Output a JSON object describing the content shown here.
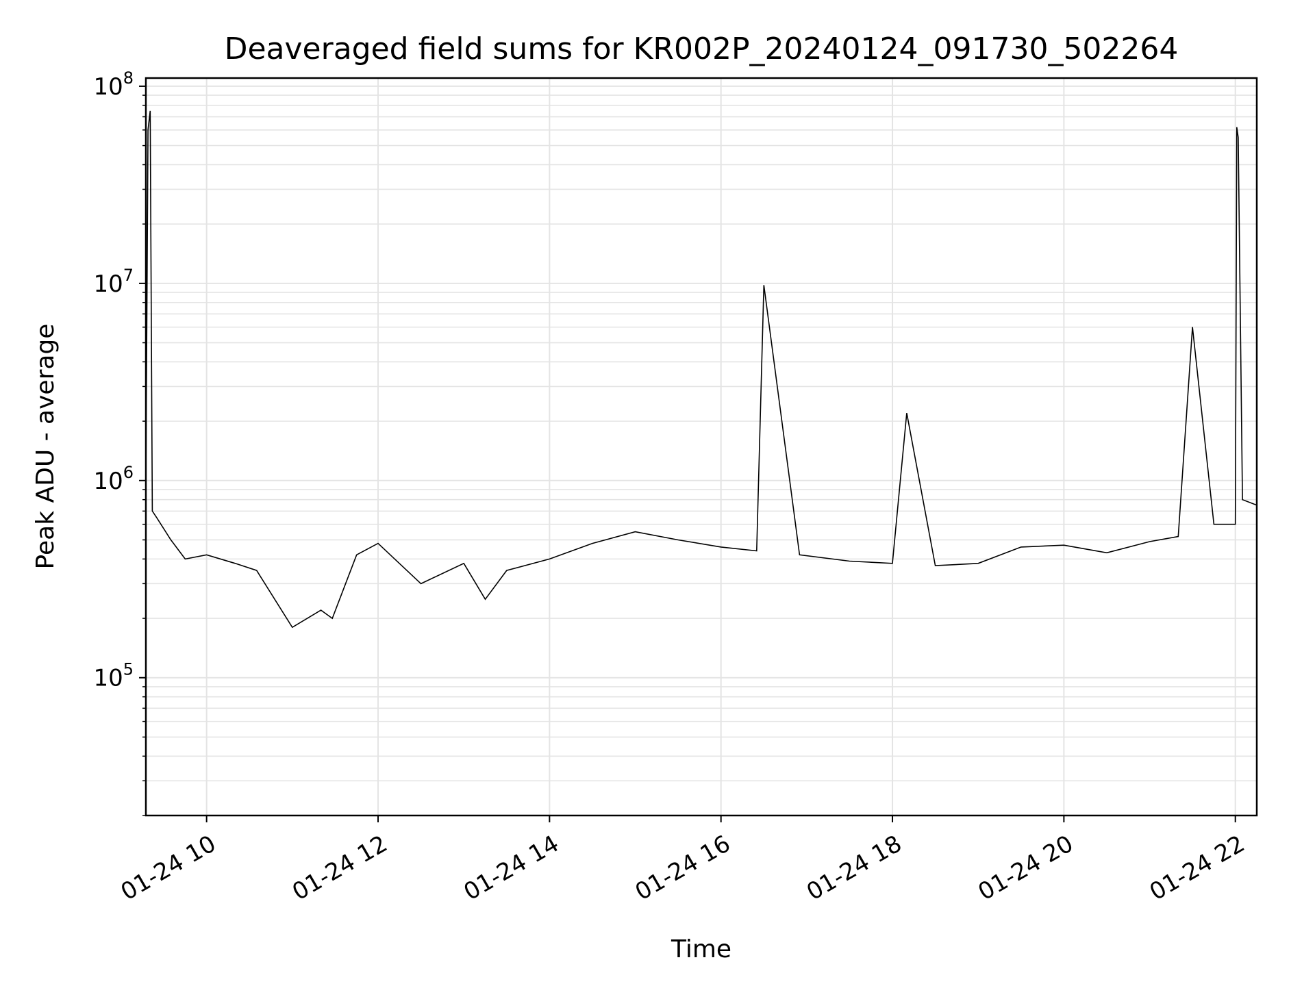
{
  "chart_data": {
    "type": "line",
    "title": "Deaveraged field sums for KR002P_20240124_091730_502264",
    "xlabel": "Time",
    "ylabel": "Peak ADU - average",
    "yscale": "log",
    "ylim": [
      20000,
      110000000
    ],
    "xlim": [
      "2024-01-24 09:17:30",
      "2024-01-24 22:15:00"
    ],
    "grid": true,
    "line_color": "#000000",
    "grid_color": "#e4e4e4",
    "x_ticks": [
      {
        "value": "2024-01-24 10:00",
        "label": "01-24 10"
      },
      {
        "value": "2024-01-24 12:00",
        "label": "01-24 12"
      },
      {
        "value": "2024-01-24 14:00",
        "label": "01-24 14"
      },
      {
        "value": "2024-01-24 16:00",
        "label": "01-24 16"
      },
      {
        "value": "2024-01-24 18:00",
        "label": "01-24 18"
      },
      {
        "value": "2024-01-24 20:00",
        "label": "01-24 20"
      },
      {
        "value": "2024-01-24 22:00",
        "label": "01-24 22"
      }
    ],
    "y_ticks": [
      {
        "value": 100000,
        "base": "10",
        "exp": "5"
      },
      {
        "value": 1000000,
        "base": "10",
        "exp": "6"
      },
      {
        "value": 10000000,
        "base": "10",
        "exp": "7"
      },
      {
        "value": 100000000,
        "base": "10",
        "exp": "8"
      }
    ],
    "series": [
      {
        "values_note": "dense noisy trace; representative samples",
        "x": [
          "2024-01-24 09:17:30",
          "2024-01-24 09:19:00",
          "2024-01-24 09:20:30",
          "2024-01-24 09:22:00",
          "2024-01-24 09:25:00",
          "2024-01-24 09:35:00",
          "2024-01-24 09:45:00",
          "2024-01-24 10:00:00",
          "2024-01-24 10:20:00",
          "2024-01-24 10:35:00",
          "2024-01-24 11:00:00",
          "2024-01-24 11:20:00",
          "2024-01-24 11:28:00",
          "2024-01-24 11:45:00",
          "2024-01-24 12:00:00",
          "2024-01-24 12:30:00",
          "2024-01-24 13:00:00",
          "2024-01-24 13:15:00",
          "2024-01-24 13:30:00",
          "2024-01-24 14:00:00",
          "2024-01-24 14:30:00",
          "2024-01-24 15:00:00",
          "2024-01-24 15:30:00",
          "2024-01-24 16:00:00",
          "2024-01-24 16:25:00",
          "2024-01-24 16:30:00",
          "2024-01-24 16:55:00",
          "2024-01-24 17:30:00",
          "2024-01-24 18:00:00",
          "2024-01-24 18:10:00",
          "2024-01-24 18:30:00",
          "2024-01-24 19:00:00",
          "2024-01-24 19:30:00",
          "2024-01-24 20:00:00",
          "2024-01-24 20:30:00",
          "2024-01-24 21:00:00",
          "2024-01-24 21:20:00",
          "2024-01-24 21:30:00",
          "2024-01-24 21:45:00",
          "2024-01-24 22:00:00",
          "2024-01-24 22:01:00",
          "2024-01-24 22:02:00",
          "2024-01-24 22:05:00",
          "2024-01-24 22:15:00"
        ],
        "values": [
          1000000,
          60000000,
          75000000,
          700000,
          650000,
          500000,
          400000,
          420000,
          380000,
          350000,
          180000,
          220000,
          200000,
          420000,
          480000,
          300000,
          380000,
          250000,
          350000,
          400000,
          480000,
          550000,
          500000,
          460000,
          440000,
          9800000,
          420000,
          390000,
          380000,
          2200000,
          370000,
          380000,
          460000,
          470000,
          430000,
          490000,
          520000,
          6000000,
          600000,
          600000,
          62000000,
          55000000,
          800000,
          750000
        ]
      }
    ]
  }
}
